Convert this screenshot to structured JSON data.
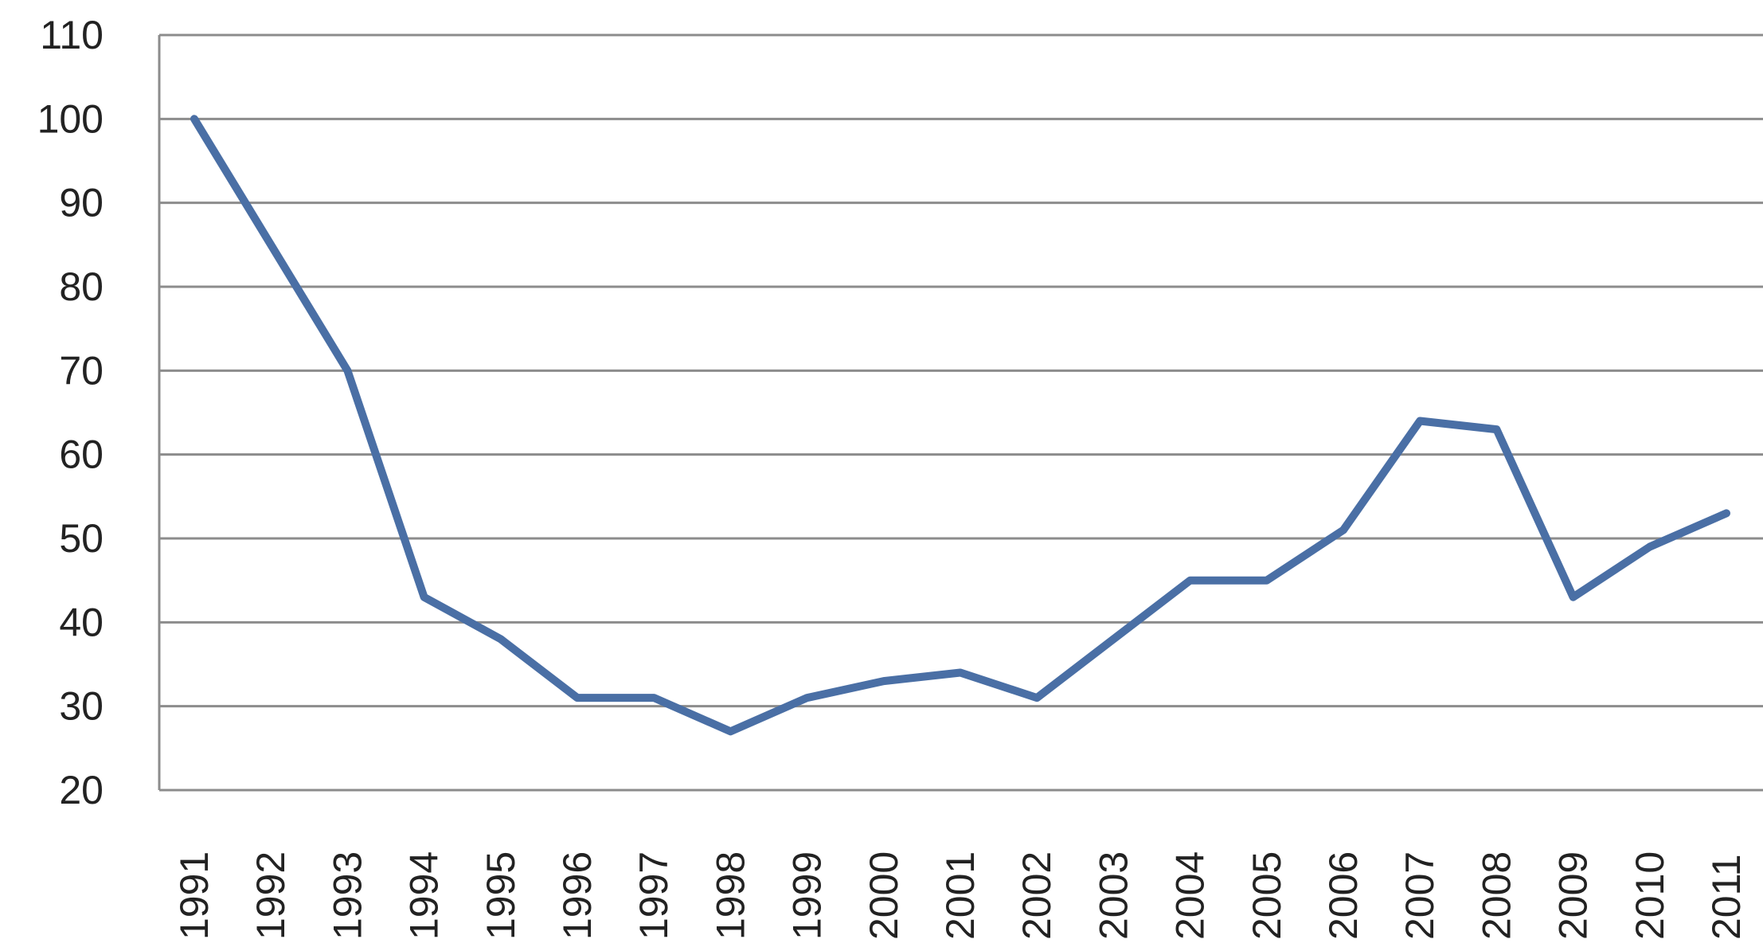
{
  "chart_data": {
    "type": "line",
    "title": "",
    "xlabel": "",
    "ylabel": "",
    "categories": [
      "1991",
      "1992",
      "1993",
      "1994",
      "1995",
      "1996",
      "1997",
      "1998",
      "1999",
      "2000",
      "2001",
      "2002",
      "2003",
      "2004",
      "2005",
      "2006",
      "2007",
      "2008",
      "2009",
      "2010",
      "2011"
    ],
    "series": [
      {
        "values": [
          100,
          85,
          70,
          43,
          38,
          31,
          31,
          27,
          31,
          33,
          34,
          31,
          38,
          45,
          45,
          51,
          64,
          63,
          43,
          49,
          53
        ]
      }
    ],
    "ylim": [
      20,
      110
    ],
    "yticks": [
      "20",
      "30",
      "40",
      "50",
      "60",
      "70",
      "80",
      "90",
      "100",
      "110"
    ],
    "grid": "horizontal",
    "legend": "none",
    "colors": {
      "line": "#4a6fa5",
      "grid": "#8c8c8c",
      "axis": "#8c8c8c",
      "text": "#222222"
    }
  }
}
